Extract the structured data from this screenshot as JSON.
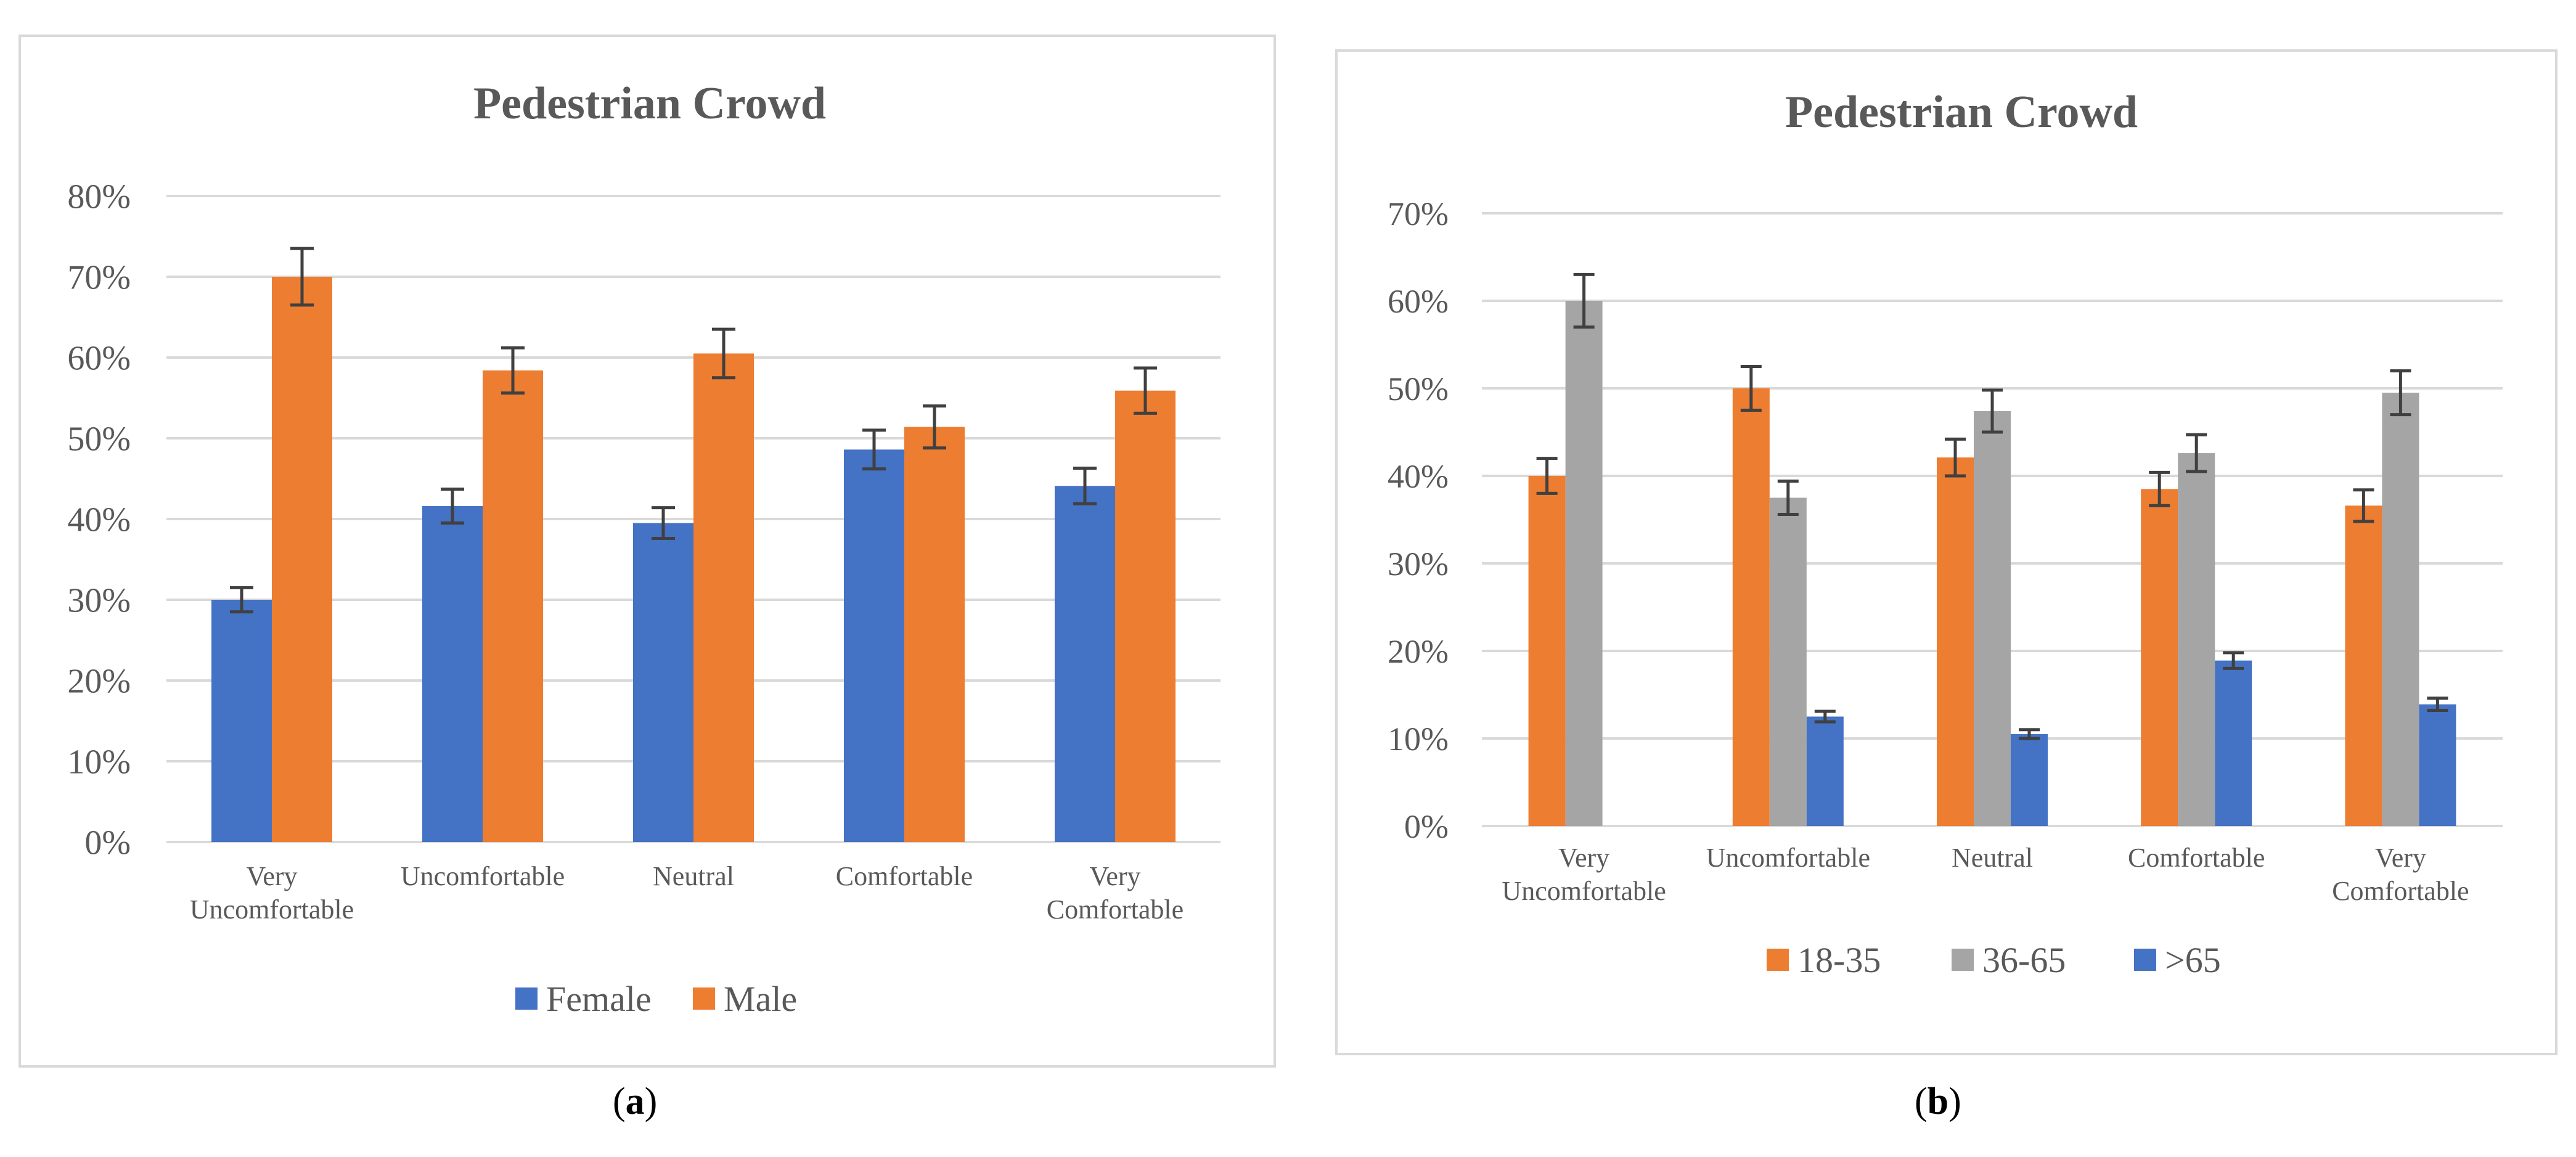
{
  "captions": {
    "a": {
      "open": "(",
      "letter": "a",
      "close": ")"
    },
    "b": {
      "open": "(",
      "letter": "b",
      "close": ")"
    }
  },
  "chart_data": [
    {
      "id": "a",
      "type": "bar",
      "title": "Pedestrian Crowd",
      "categories": [
        [
          "Very",
          "Uncomfortable"
        ],
        [
          "Uncomfortable"
        ],
        [
          "Neutral"
        ],
        [
          "Comfortable"
        ],
        [
          "Very",
          "Comfortable"
        ]
      ],
      "series": [
        {
          "name": "Female",
          "color": "#4472C4",
          "values": [
            30.0,
            41.6,
            39.5,
            48.6,
            44.1
          ],
          "errors": [
            1.5,
            2.1,
            1.9,
            2.4,
            2.2
          ]
        },
        {
          "name": "Male",
          "color": "#ED7D31",
          "values": [
            70.0,
            58.4,
            60.5,
            51.4,
            55.9
          ],
          "errors": [
            3.5,
            2.8,
            3.0,
            2.6,
            2.8
          ]
        }
      ],
      "ylim": [
        0,
        80
      ],
      "yticks": [
        0,
        10,
        20,
        30,
        40,
        50,
        60,
        70,
        80
      ],
      "ytick_labels": [
        "0%",
        "10%",
        "20%",
        "30%",
        "40%",
        "50%",
        "60%",
        "70%",
        "80%"
      ],
      "grid": true,
      "legend_position": "bottom"
    },
    {
      "id": "b",
      "type": "bar",
      "title": "Pedestrian Crowd",
      "categories": [
        [
          "Very",
          "Uncomfortable"
        ],
        [
          "Uncomfortable"
        ],
        [
          "Neutral"
        ],
        [
          "Comfortable"
        ],
        [
          "Very",
          "Comfortable"
        ]
      ],
      "series": [
        {
          "name": "18-35",
          "color": "#ED7D31",
          "values": [
            40.0,
            50.0,
            42.1,
            38.5,
            36.6
          ],
          "errors": [
            2.0,
            2.5,
            2.1,
            1.9,
            1.8
          ]
        },
        {
          "name": "36-65",
          "color": "#A5A5A5",
          "values": [
            60.0,
            37.5,
            47.4,
            42.6,
            49.5
          ],
          "errors": [
            3.0,
            1.9,
            2.4,
            2.1,
            2.5
          ]
        },
        {
          "name": ">65",
          "color": "#4472C4",
          "values": [
            0,
            12.5,
            10.5,
            18.9,
            13.9
          ],
          "errors": [
            0,
            0.6,
            0.5,
            0.9,
            0.7
          ]
        }
      ],
      "ylim": [
        0,
        70
      ],
      "yticks": [
        0,
        10,
        20,
        30,
        40,
        50,
        60,
        70
      ],
      "ytick_labels": [
        "0%",
        "10%",
        "20%",
        "30%",
        "40%",
        "50%",
        "60%",
        "70%"
      ],
      "grid": true,
      "legend_position": "bottom"
    }
  ]
}
